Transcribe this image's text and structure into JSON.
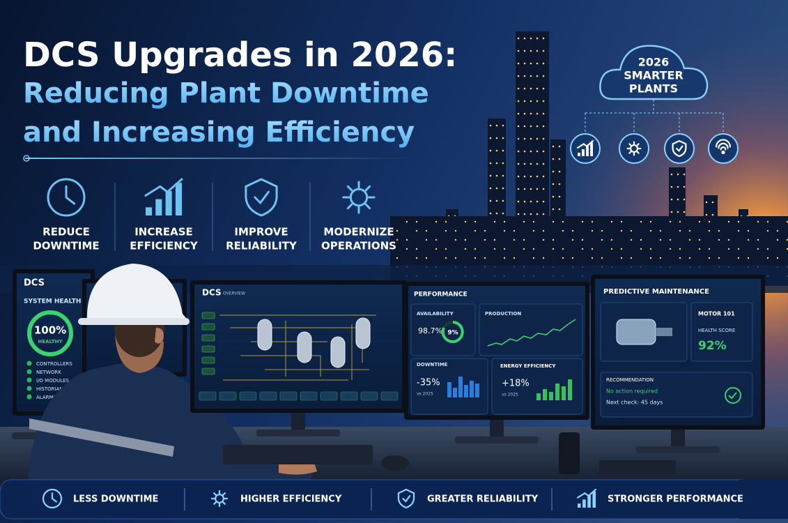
{
  "header": {
    "title": "DCS Upgrades in 2026:",
    "subtitle_lines": [
      "Reducing Plant Downtime",
      "and Increasing Efficiency"
    ]
  },
  "cloud": {
    "lines": [
      "2026",
      "SMARTER",
      "PLANTS"
    ]
  },
  "features": [
    {
      "lines": [
        "REDUCE",
        "DOWNTIME"
      ]
    },
    {
      "lines": [
        "INCREASE",
        "EFFICIENCY"
      ]
    },
    {
      "lines": [
        "IMPROVE",
        "RELIABILITY"
      ]
    },
    {
      "lines": [
        "MODERNIZE",
        "OPERATIONS"
      ]
    }
  ],
  "screens": {
    "health": {
      "brand": "DCS",
      "title": "SYSTEM HEALTH",
      "value": "100%",
      "status": "HEALTHY",
      "items": [
        "CONTROLLERS",
        "NETWORK",
        "I/O MODULES",
        "HISTORIAN",
        "ALARMS"
      ]
    },
    "overview": {
      "brand": "DCS",
      "title": "OVERVIEW"
    },
    "performance": {
      "title": "PERFORMANCE",
      "availability_label": "AVAILABILITY",
      "availability": "98.7%",
      "ring": "9%",
      "production_label": "PRODUCTION",
      "downtime_label": "DOWNTIME",
      "downtime": "-35%",
      "downtime_note": "vs 2025",
      "energy_label": "ENERGY EFFICIENCY",
      "energy": "+18%",
      "energy_note": "vs 2025"
    },
    "maintenance": {
      "title": "PREDICTIVE MAINTENANCE",
      "asset": "MOTOR 101",
      "score_label": "HEALTH SCORE",
      "score": "92%",
      "rec_label": "RECOMMENDATION",
      "rec": "No action required",
      "next": "Next check: 45 days"
    }
  },
  "footer": {
    "items": [
      "LESS DOWNTIME",
      "HIGHER EFFICIENCY",
      "GREATER RELIABILITY",
      "STRONGER PERFORMANCE"
    ]
  }
}
